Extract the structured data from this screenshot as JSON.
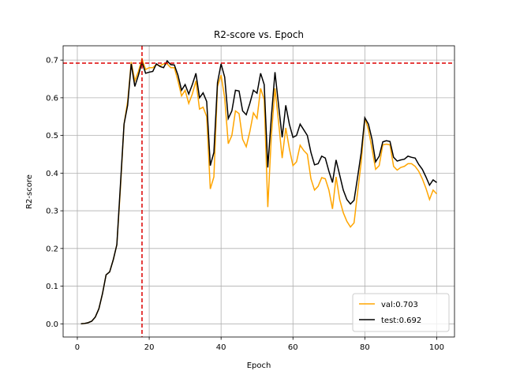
{
  "chart_data": {
    "type": "line",
    "title": "R2-score vs. Epoch",
    "xlabel": "Epoch",
    "ylabel": "R2-score",
    "x": [
      1,
      2,
      3,
      4,
      5,
      6,
      7,
      8,
      9,
      10,
      11,
      12,
      13,
      14,
      15,
      16,
      17,
      18,
      19,
      20,
      21,
      22,
      23,
      24,
      25,
      26,
      27,
      28,
      29,
      30,
      31,
      32,
      33,
      34,
      35,
      36,
      37,
      38,
      39,
      40,
      41,
      42,
      43,
      44,
      45,
      46,
      47,
      48,
      49,
      50,
      51,
      52,
      53,
      54,
      55,
      56,
      57,
      58,
      59,
      60,
      61,
      62,
      63,
      64,
      65,
      66,
      67,
      68,
      69,
      70,
      71,
      72,
      73,
      74,
      75,
      76,
      77,
      78,
      79,
      80,
      81,
      82,
      83,
      84,
      85,
      86,
      87,
      88,
      89,
      90,
      91,
      92,
      93,
      94,
      95,
      96,
      97,
      98,
      99,
      100
    ],
    "series": [
      {
        "name": "val:0.703",
        "color": "#ffa500",
        "values": [
          0.0,
          0.001,
          0.003,
          0.007,
          0.018,
          0.04,
          0.08,
          0.13,
          0.138,
          0.17,
          0.21,
          0.36,
          0.53,
          0.59,
          0.695,
          0.645,
          0.67,
          0.703,
          0.675,
          0.68,
          0.68,
          0.688,
          0.685,
          0.69,
          0.69,
          0.68,
          0.68,
          0.645,
          0.605,
          0.62,
          0.585,
          0.61,
          0.645,
          0.57,
          0.575,
          0.55,
          0.358,
          0.39,
          0.63,
          0.66,
          0.6,
          0.478,
          0.5,
          0.565,
          0.558,
          0.49,
          0.47,
          0.51,
          0.56,
          0.545,
          0.625,
          0.595,
          0.31,
          0.5,
          0.625,
          0.535,
          0.44,
          0.52,
          0.465,
          0.42,
          0.43,
          0.474,
          0.46,
          0.45,
          0.385,
          0.355,
          0.365,
          0.388,
          0.385,
          0.355,
          0.305,
          0.39,
          0.33,
          0.295,
          0.272,
          0.257,
          0.268,
          0.35,
          0.43,
          0.547,
          0.515,
          0.465,
          0.41,
          0.42,
          0.475,
          0.477,
          0.475,
          0.418,
          0.408,
          0.415,
          0.418,
          0.425,
          0.425,
          0.418,
          0.405,
          0.385,
          0.36,
          0.33,
          0.355,
          0.345
        ]
      },
      {
        "name": "test:0.692",
        "color": "#000000",
        "values": [
          0.0,
          0.001,
          0.003,
          0.007,
          0.018,
          0.04,
          0.08,
          0.13,
          0.138,
          0.17,
          0.21,
          0.37,
          0.53,
          0.58,
          0.69,
          0.63,
          0.66,
          0.695,
          0.665,
          0.668,
          0.67,
          0.69,
          0.683,
          0.68,
          0.698,
          0.688,
          0.687,
          0.66,
          0.62,
          0.635,
          0.61,
          0.635,
          0.665,
          0.6,
          0.613,
          0.59,
          0.42,
          0.455,
          0.64,
          0.69,
          0.655,
          0.545,
          0.565,
          0.62,
          0.618,
          0.565,
          0.555,
          0.585,
          0.62,
          0.612,
          0.665,
          0.635,
          0.415,
          0.55,
          0.668,
          0.58,
          0.495,
          0.58,
          0.53,
          0.495,
          0.5,
          0.53,
          0.515,
          0.5,
          0.455,
          0.422,
          0.425,
          0.445,
          0.44,
          0.405,
          0.375,
          0.435,
          0.395,
          0.355,
          0.33,
          0.318,
          0.328,
          0.39,
          0.455,
          0.547,
          0.53,
          0.49,
          0.43,
          0.445,
          0.483,
          0.486,
          0.484,
          0.442,
          0.432,
          0.435,
          0.437,
          0.445,
          0.442,
          0.44,
          0.423,
          0.41,
          0.39,
          0.368,
          0.382,
          0.375
        ]
      }
    ],
    "hline": 0.692,
    "vline": 18,
    "ref_color": "#dd0000",
    "xlim": [
      -3.95,
      104.95
    ],
    "ylim": [
      -0.035,
      0.738
    ],
    "xticks": [
      0,
      20,
      40,
      60,
      80,
      100
    ],
    "yticks": [
      {
        "value": 0,
        "label": "0.0"
      },
      0.1,
      0.2,
      0.3,
      0.4,
      0.5,
      0.6,
      0.7
    ],
    "grid": true,
    "legend": "lower right"
  }
}
